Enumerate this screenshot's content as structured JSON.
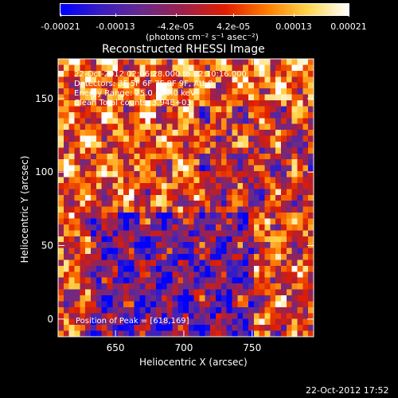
{
  "colorbar": {
    "tick_labels": [
      "-0.00021",
      "-0.00013",
      "-4.2e-05",
      "4.2e-05",
      "0.00013",
      "0.00021"
    ],
    "tick_values": [
      -0.00021,
      -0.00013,
      -4.2e-05,
      4.2e-05,
      0.00013,
      0.00021
    ],
    "range": [
      -0.00021,
      0.00021
    ],
    "units_label": "(photons cm⁻² s⁻¹ asec⁻²)",
    "colormap": [
      "#0000ff",
      "#3b1fc0",
      "#6a2a8a",
      "#a0204a",
      "#e01e00",
      "#ff7a00",
      "#ffd54a",
      "#ffffff"
    ]
  },
  "chart_data": {
    "type": "heatmap",
    "title": "Reconstructed RHESSI Image",
    "xlabel": "Heliocentric X (arcsec)",
    "ylabel": "Heliocentric Y (arcsec)",
    "xlim": [
      608,
      795
    ],
    "ylim": [
      -12,
      177
    ],
    "x_ticks": [
      650,
      700,
      750
    ],
    "x_tick_labels": [
      "650",
      "700",
      "750"
    ],
    "y_ticks": [
      0,
      50,
      100,
      150
    ],
    "y_tick_labels": [
      "0",
      "50",
      "100",
      "150"
    ],
    "annotations": [
      "22-Oct-2012 02:06:28.000 to 02:10:16.000",
      "Detectors: 3F 5F 6F 7F 8F 9F, Att 0",
      "Energy Range: 25.0 - 50.0 keV",
      "Clean     Total counts: 3.94E+03"
    ],
    "peak_label": "Position of Peak = [618,169]",
    "peak_position": [
      618,
      169
    ],
    "pixel_size_arcsec": 4,
    "rows": 47,
    "cols": 47
  },
  "footer": {
    "timestamp": "22-Oct-2012 17:52"
  }
}
